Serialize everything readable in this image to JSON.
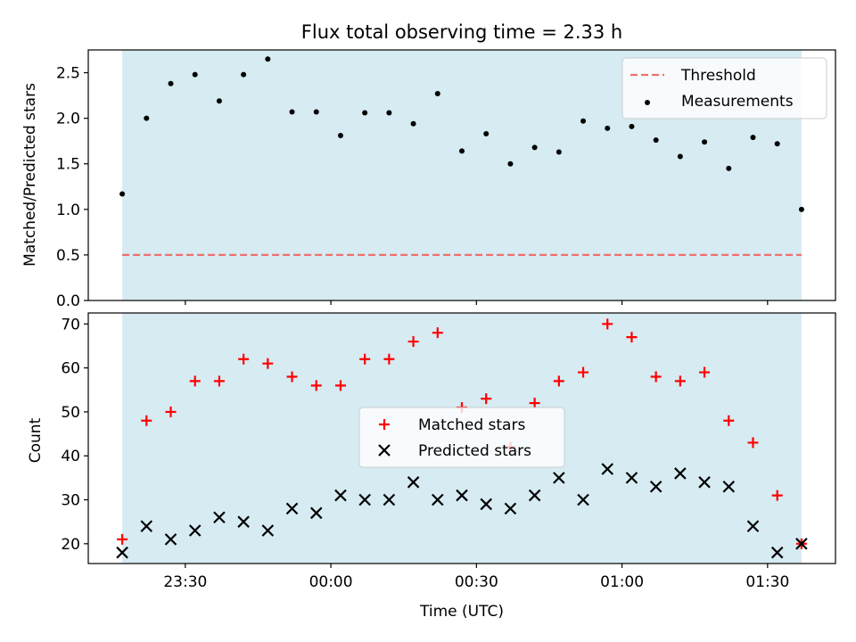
{
  "chart_data": [
    {
      "type": "scatter",
      "title": "Flux total observing time = 2.33 h",
      "ylabel": "Matched/Predicted stars",
      "xlabel": "",
      "ylim": [
        0,
        2.75
      ],
      "yticks": [
        0.0,
        0.5,
        1.0,
        1.5,
        2.0,
        2.5
      ],
      "ytick_labels": [
        "0.0",
        "0.5",
        "1.0",
        "1.5",
        "2.0",
        "2.5"
      ],
      "grid": false,
      "legend_position": "top-right",
      "observing_span_color": "#add8e6",
      "series": [
        {
          "name": "Threshold",
          "kind": "dashed-line",
          "color": "#f07070",
          "x": [
            "23:17",
            "01:37"
          ],
          "y": [
            0.5,
            0.5
          ]
        },
        {
          "name": "Measurements",
          "kind": "dot",
          "color": "#000000",
          "x": [
            "23:17",
            "23:22",
            "23:27",
            "23:32",
            "23:37",
            "23:42",
            "23:47",
            "23:52",
            "23:57",
            "00:02",
            "00:07",
            "00:12",
            "00:17",
            "00:22",
            "00:27",
            "00:32",
            "00:37",
            "00:42",
            "00:47",
            "00:52",
            "00:57",
            "01:02",
            "01:07",
            "01:12",
            "01:17",
            "01:22",
            "01:27",
            "01:32",
            "01:37"
          ],
          "y": [
            1.17,
            2.0,
            2.38,
            2.48,
            2.19,
            2.48,
            2.65,
            2.07,
            2.07,
            1.81,
            2.06,
            2.06,
            1.94,
            2.27,
            1.64,
            1.83,
            1.5,
            1.68,
            1.63,
            1.97,
            1.89,
            1.91,
            1.76,
            1.58,
            1.74,
            1.45,
            1.79,
            1.72,
            1.0
          ]
        }
      ]
    },
    {
      "type": "scatter",
      "title": "",
      "xlabel": "Time (UTC)",
      "ylabel": "Count",
      "ylim": [
        15.5,
        72.5
      ],
      "yticks": [
        20,
        30,
        40,
        50,
        60,
        70
      ],
      "ytick_labels": [
        "20",
        "30",
        "40",
        "50",
        "60",
        "70"
      ],
      "xlim": [
        "23:10",
        "01:44"
      ],
      "xticks": [
        "23:30",
        "00:00",
        "00:30",
        "01:00",
        "01:30"
      ],
      "grid": false,
      "legend_position": "center",
      "observing_span_color": "#add8e6",
      "series": [
        {
          "name": "Matched stars",
          "kind": "plus",
          "color": "#ff0000",
          "x": [
            "23:17",
            "23:22",
            "23:27",
            "23:32",
            "23:37",
            "23:42",
            "23:47",
            "23:52",
            "23:57",
            "00:02",
            "00:07",
            "00:12",
            "00:17",
            "00:22",
            "00:27",
            "00:32",
            "00:37",
            "00:42",
            "00:47",
            "00:52",
            "00:57",
            "01:02",
            "01:07",
            "01:12",
            "01:17",
            "01:22",
            "01:27",
            "01:32",
            "01:37"
          ],
          "y": [
            21,
            48,
            50,
            57,
            57,
            62,
            61,
            58,
            56,
            56,
            62,
            62,
            66,
            68,
            51,
            53,
            42,
            52,
            57,
            59,
            70,
            67,
            58,
            57,
            59,
            48,
            43,
            31,
            20
          ]
        },
        {
          "name": "Predicted stars",
          "kind": "cross",
          "color": "#000000",
          "x": [
            "23:17",
            "23:22",
            "23:27",
            "23:32",
            "23:37",
            "23:42",
            "23:47",
            "23:52",
            "23:57",
            "00:02",
            "00:07",
            "00:12",
            "00:17",
            "00:22",
            "00:27",
            "00:32",
            "00:37",
            "00:42",
            "00:47",
            "00:52",
            "00:57",
            "01:02",
            "01:07",
            "01:12",
            "01:17",
            "01:22",
            "01:27",
            "01:32",
            "01:37"
          ],
          "y": [
            18,
            24,
            21,
            23,
            26,
            25,
            23,
            28,
            27,
            31,
            30,
            30,
            34,
            30,
            31,
            29,
            28,
            31,
            35,
            30,
            37,
            35,
            33,
            36,
            34,
            33,
            24,
            18,
            20
          ]
        }
      ]
    }
  ]
}
